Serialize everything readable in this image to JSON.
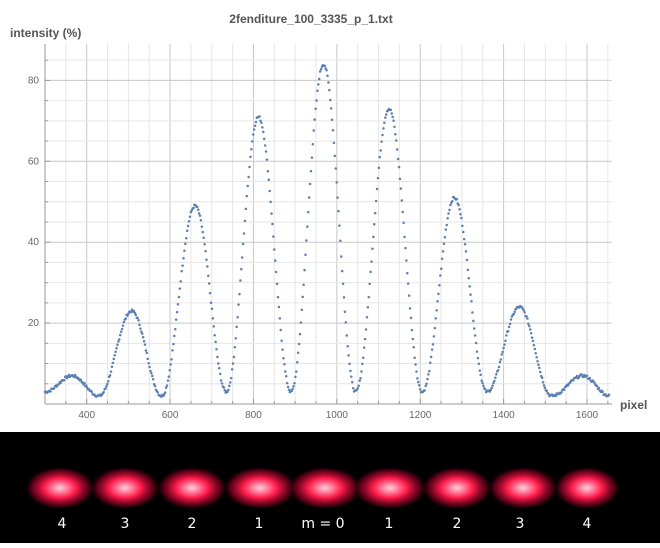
{
  "chart_data": {
    "type": "scatter",
    "title": "2fenditure_100_3335_p_1.txt",
    "xlabel": "pixel",
    "ylabel": "intensity (%)",
    "xlim": [
      300,
      1660
    ],
    "ylim": [
      0,
      89
    ],
    "xticks": [
      400,
      600,
      800,
      1000,
      1200,
      1400,
      1600
    ],
    "yticks": [
      20,
      40,
      60,
      80
    ],
    "grid": true,
    "marker_color": "#5b7fb0",
    "peaks": [
      {
        "x": 365,
        "y": 7
      },
      {
        "x": 508,
        "y": 23
      },
      {
        "x": 660,
        "y": 49
      },
      {
        "x": 812,
        "y": 71
      },
      {
        "x": 968,
        "y": 84
      },
      {
        "x": 1125,
        "y": 73
      },
      {
        "x": 1282,
        "y": 51
      },
      {
        "x": 1438,
        "y": 24
      },
      {
        "x": 1590,
        "y": 7
      }
    ],
    "minima": [
      {
        "x": 300,
        "y": 3
      },
      {
        "x": 430,
        "y": 2
      },
      {
        "x": 580,
        "y": 2
      },
      {
        "x": 735,
        "y": 3
      },
      {
        "x": 890,
        "y": 3
      },
      {
        "x": 1045,
        "y": 3
      },
      {
        "x": 1205,
        "y": 3
      },
      {
        "x": 1360,
        "y": 3
      },
      {
        "x": 1515,
        "y": 2
      },
      {
        "x": 1655,
        "y": 2
      }
    ]
  },
  "fringe_image": {
    "fringe_color": "#ff1a4a",
    "core_color": "#ffd0e0",
    "labels": [
      "4",
      "3",
      "2",
      "1",
      "m = 0",
      "1",
      "2",
      "3",
      "4"
    ]
  }
}
